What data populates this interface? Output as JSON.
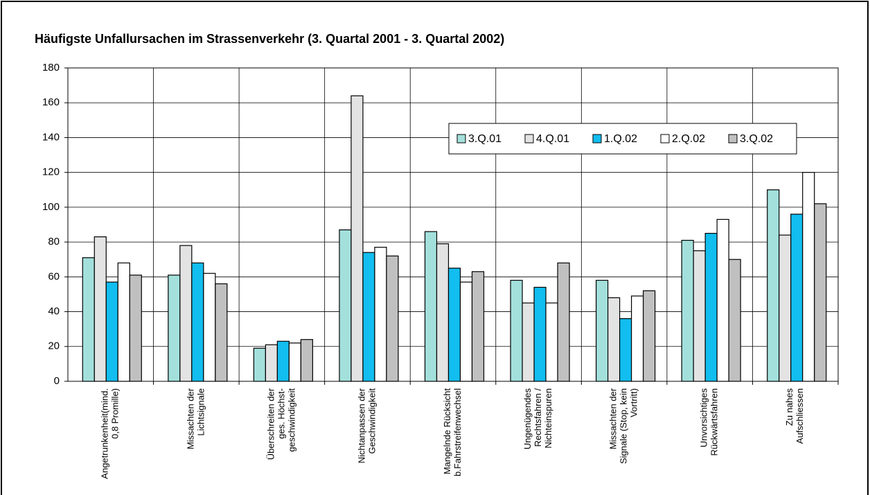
{
  "chart_data": {
    "type": "bar",
    "title": "Häufigste Unfallursachen im Strassenverkehr (3. Quartal 2001 - 3. Quartal 2002)",
    "categories": [
      [
        "Angetrunkenheit(mind.",
        "0,8 Promille)"
      ],
      [
        "Missachten der",
        "Lichtsignale"
      ],
      [
        "Überschreiten  der",
        "ges. Höchst-",
        "geschwindigkeit"
      ],
      [
        "Nichtanpassen der",
        "Geschwindigkeit"
      ],
      [
        "Mangelnde Rücksicht",
        "b.Fahrstreifenwechsel"
      ],
      [
        "Ungenügendes",
        "Rechtsfahren /",
        "Nichteinspuren"
      ],
      [
        "Missachten der",
        "Signale (Stop, kein",
        "Vortritt)"
      ],
      [
        "Unvorsichtiges",
        "Rückwärtsfahren"
      ],
      [
        "Zu nahes",
        "Aufschliessen"
      ]
    ],
    "series": [
      {
        "name": "3.Q.01",
        "color": "#a3e0dc",
        "values": [
          71,
          61,
          19,
          87,
          86,
          58,
          58,
          81,
          110
        ]
      },
      {
        "name": "4.Q.01",
        "color": "#e3e3e3",
        "values": [
          83,
          78,
          21,
          164,
          79,
          45,
          48,
          75,
          84
        ]
      },
      {
        "name": "1.Q.02",
        "color": "#12bdef",
        "values": [
          57,
          68,
          23,
          74,
          65,
          54,
          36,
          85,
          96
        ]
      },
      {
        "name": "2.Q.02",
        "color": "#ffffff",
        "values": [
          68,
          62,
          22,
          77,
          57,
          45,
          49,
          93,
          120
        ]
      },
      {
        "name": "3.Q.02",
        "color": "#c0c0c0",
        "values": [
          61,
          56,
          24,
          72,
          63,
          68,
          52,
          70,
          102
        ]
      }
    ],
    "ylim": [
      0,
      180
    ],
    "yticks": [
      0,
      20,
      40,
      60,
      80,
      100,
      120,
      140,
      160,
      180
    ],
    "grid": true,
    "legend": "upper right"
  }
}
